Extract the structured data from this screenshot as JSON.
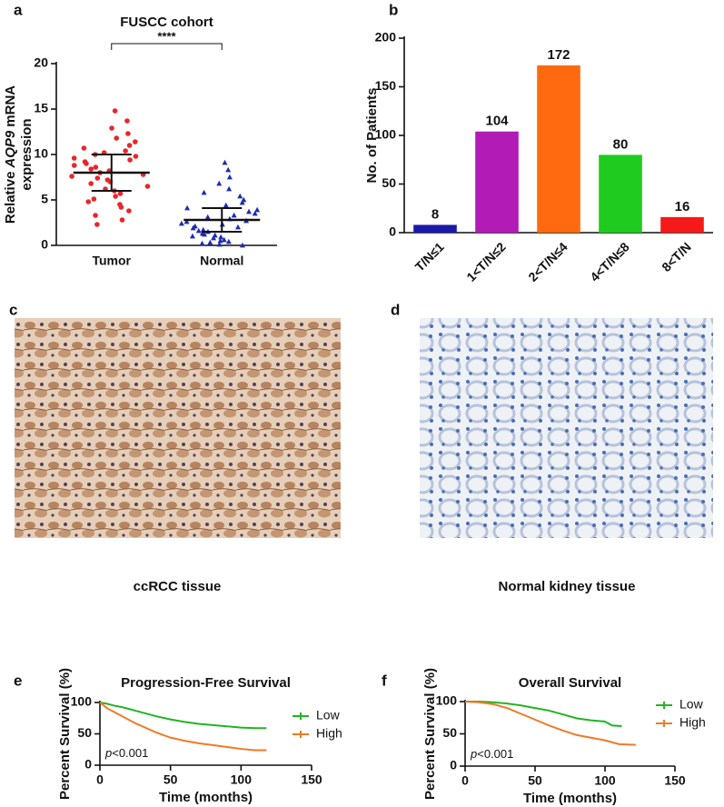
{
  "chart_data": [
    {
      "panel": "a",
      "type": "dot",
      "title": "FUSCC cohort",
      "ylabel_parts": [
        "Relative",
        "AQP9",
        "mRNA"
      ],
      "ylabel_line2": "expression",
      "categories": [
        "Tumor",
        "Normal"
      ],
      "groups": [
        {
          "color": "#e8262a",
          "marker": "circle",
          "mean": 8.0,
          "sd": 2.0,
          "values": [
            9.6,
            14.8,
            6.8,
            12.3,
            8.2,
            2.3,
            10.4,
            7.4,
            13.7,
            5.4,
            9.0,
            11.0,
            6.2,
            8.8,
            4.5,
            10.0,
            7.8,
            12.9,
            3.3,
            9.4,
            8.0,
            6.5,
            11.8,
            5.1,
            9.8,
            7.2,
            10.7,
            4.2,
            8.6,
            11.4,
            6.0,
            9.2,
            2.8,
            10.2,
            7.6,
            5.7,
            8.4,
            3.8,
            7.0,
            4.8
          ]
        },
        {
          "color": "#1f2bb0",
          "marker": "triangle",
          "mean": 2.8,
          "sd": 1.3,
          "values": [
            2.4,
            9.1,
            1.2,
            3.7,
            0.5,
            5.8,
            2.0,
            3.1,
            0.0,
            4.4,
            1.6,
            2.7,
            6.8,
            1.0,
            3.3,
            0.3,
            5.0,
            2.3,
            1.9,
            8.3,
            0.8,
            3.9,
            2.9,
            1.3,
            4.7,
            0.1,
            2.6,
            6.2,
            1.5,
            3.5,
            0.6,
            2.1,
            7.5,
            1.1,
            4.1,
            0.4,
            1.7,
            5.4,
            0.9,
            0.2
          ]
        }
      ],
      "significance": "****",
      "ylim": [
        0,
        20
      ],
      "yticks": [
        0,
        5,
        10,
        15,
        20
      ]
    },
    {
      "panel": "b",
      "type": "bar",
      "ylabel": "No. of Patients",
      "categories": [
        "T/N≤1",
        "1<T/N≤2",
        "2<T/N≤4",
        "4<T/N≤8",
        "8<T/N"
      ],
      "values": [
        8,
        104,
        172,
        80,
        16
      ],
      "colors": [
        "#1a1aa6",
        "#b21bb5",
        "#ff6a10",
        "#1ecb1e",
        "#f51919"
      ],
      "ylim": [
        0,
        200
      ],
      "yticks": [
        0,
        50,
        100,
        150,
        200
      ]
    },
    {
      "panel": "e",
      "type": "line",
      "title": "Progression-Free Survival",
      "xlabel": "Time (months)",
      "ylabel": "Percent Survival (%)",
      "annotation": [
        "p",
        "<0.001"
      ],
      "series": [
        {
          "name": "Low",
          "color": "#22b422",
          "x": [
            0,
            5,
            10,
            15,
            20,
            25,
            30,
            40,
            50,
            60,
            70,
            80,
            90,
            100,
            110,
            118
          ],
          "values": [
            100,
            98,
            95,
            93,
            90,
            87,
            84,
            78,
            73,
            69,
            66,
            64,
            62,
            60,
            59,
            59
          ]
        },
        {
          "name": "High",
          "color": "#f07a26",
          "x": [
            0,
            5,
            10,
            15,
            20,
            25,
            30,
            40,
            50,
            60,
            70,
            80,
            90,
            100,
            110,
            118
          ],
          "values": [
            100,
            91,
            85,
            79,
            73,
            67,
            62,
            52,
            44,
            39,
            35,
            32,
            29,
            26,
            24,
            24
          ]
        }
      ],
      "xlim": [
        0,
        150
      ],
      "xticks": [
        0,
        50,
        100,
        150
      ],
      "ylim": [
        0,
        100
      ],
      "yticks": [
        0,
        50,
        100
      ]
    },
    {
      "panel": "f",
      "type": "line",
      "title": "Overall Survival",
      "xlabel": "Time (months)",
      "ylabel": "Percent Survival (%)",
      "annotation": [
        "p",
        "<0.001"
      ],
      "series": [
        {
          "name": "Low",
          "color": "#22b422",
          "x": [
            0,
            10,
            20,
            30,
            40,
            50,
            60,
            70,
            80,
            90,
            100,
            105,
            112
          ],
          "values": [
            100,
            100,
            99,
            97,
            94,
            90,
            86,
            80,
            74,
            71,
            69,
            63,
            62
          ]
        },
        {
          "name": "High",
          "color": "#f07a26",
          "x": [
            0,
            10,
            20,
            30,
            40,
            50,
            60,
            70,
            80,
            90,
            100,
            110,
            122
          ],
          "values": [
            100,
            99,
            96,
            90,
            81,
            72,
            63,
            55,
            48,
            44,
            40,
            34,
            33
          ]
        }
      ],
      "xlim": [
        0,
        150
      ],
      "xticks": [
        0,
        50,
        100,
        150
      ],
      "ylim": [
        0,
        100
      ],
      "yticks": [
        0,
        50,
        100
      ]
    }
  ],
  "images": [
    {
      "panel": "c",
      "caption": "ccRCC tissue"
    },
    {
      "panel": "d",
      "caption": "Normal kidney tissue"
    }
  ]
}
